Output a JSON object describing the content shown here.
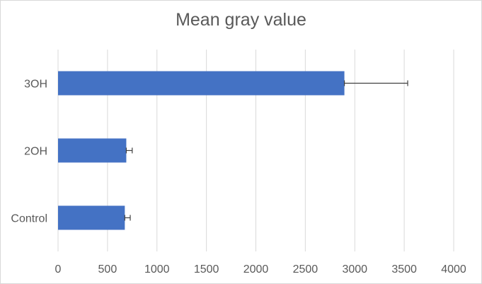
{
  "chart_data": {
    "type": "bar",
    "orientation": "horizontal",
    "title": "Mean gray value",
    "xlabel": "",
    "ylabel": "",
    "categories": [
      "Control",
      "2OH",
      "3OH"
    ],
    "values": [
      675,
      690,
      2895
    ],
    "error": [
      55,
      60,
      640
    ],
    "xlim": [
      0,
      4000
    ],
    "xticks": [
      0,
      500,
      1000,
      1500,
      2000,
      2500,
      3000,
      3500,
      4000
    ],
    "grid": true,
    "legend": "none",
    "bar_color": "#4472c4",
    "grid_color": "#d9d9d9"
  }
}
